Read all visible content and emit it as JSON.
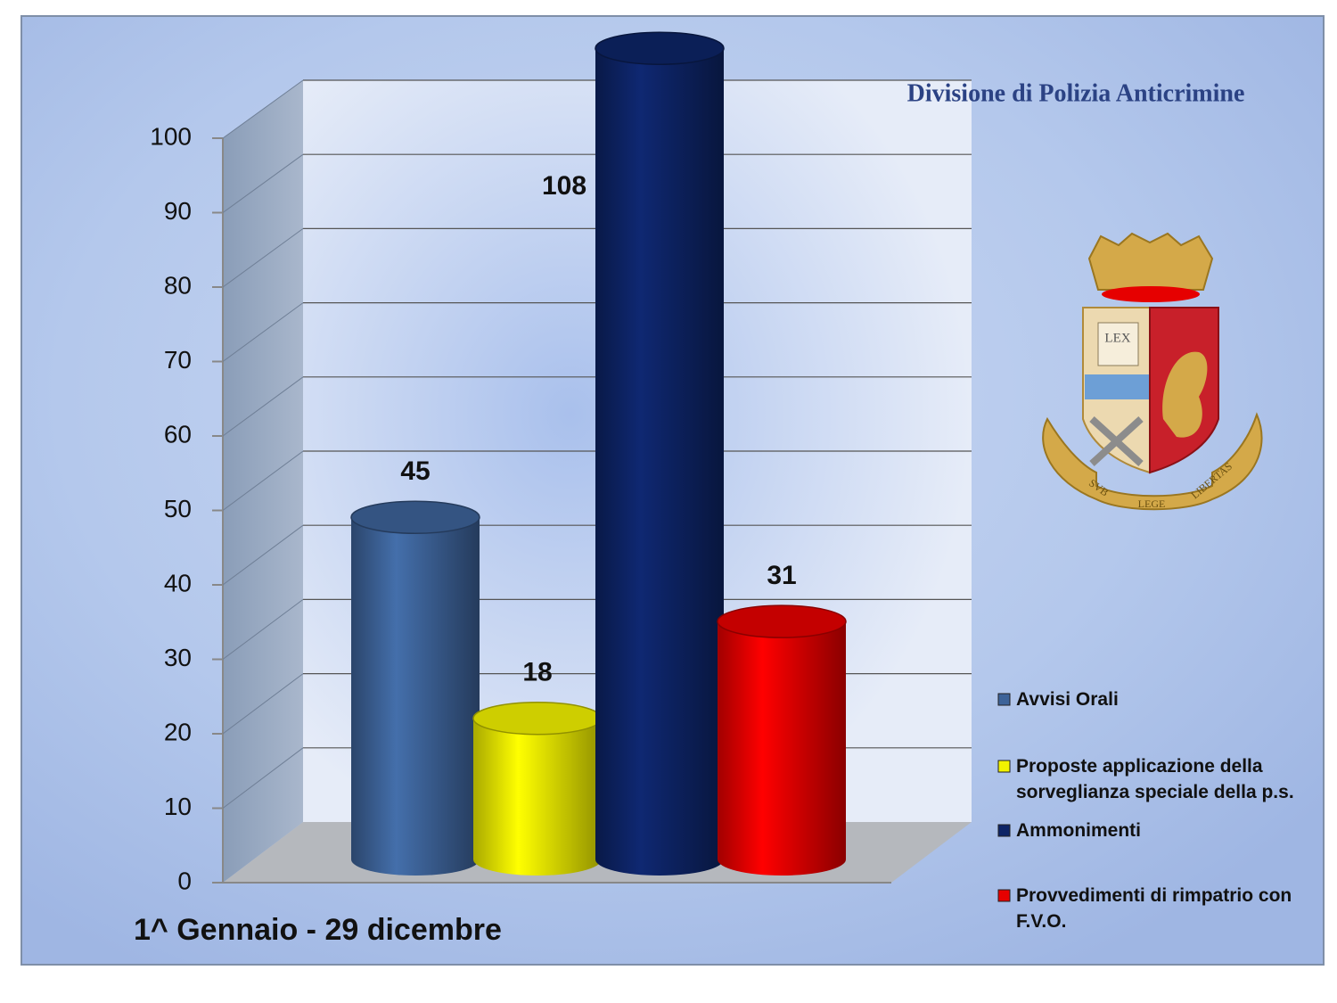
{
  "chart_data": {
    "type": "bar3d",
    "title": "Divisione di Polizia Anticrimine",
    "subtitle": "1^ Gennaio  - 29 dicembre",
    "ylim": [
      0,
      100
    ],
    "yticks": [
      0,
      10,
      20,
      30,
      40,
      50,
      60,
      70,
      80,
      90,
      100
    ],
    "grid": true,
    "legend": "right",
    "series": [
      {
        "name": "Avvisi Orali",
        "color": "#3d6399",
        "values": [
          45
        ]
      },
      {
        "name": "Proposte applicazione della sorveglianza speciale della p.s.",
        "color": "#f2f200",
        "values": [
          18
        ]
      },
      {
        "name": "Ammonimenti",
        "color": "#0d2466",
        "values": [
          108
        ]
      },
      {
        "name": "Provvedimenti di rimpatrio con F.V.O.",
        "color": "#e60000",
        "values": [
          31
        ]
      }
    ]
  },
  "logo": {
    "book": "LEX",
    "motto": [
      "SVB",
      "LEGE",
      "LIBERTAS"
    ]
  }
}
